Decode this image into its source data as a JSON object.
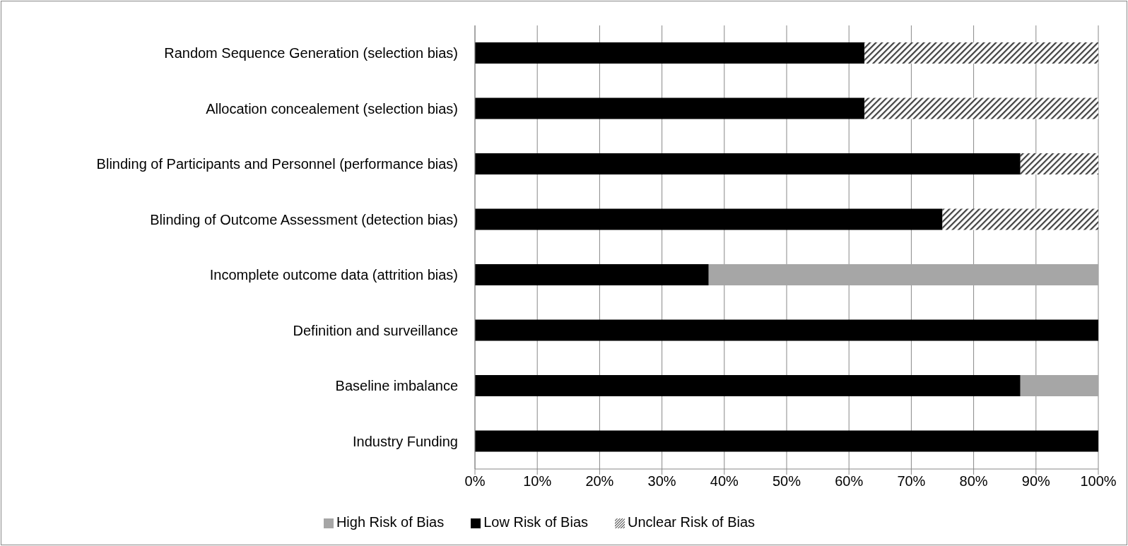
{
  "chart_data": {
    "type": "bar",
    "orientation": "horizontal",
    "stacked": true,
    "categories": [
      "Random Sequence Generation (selection bias)",
      "Allocation concealement (selection bias)",
      "Blinding of Participants and Personnel (performance bias)",
      "Blinding of Outcome Assessment (detection bias)",
      "Incomplete outcome data (attrition bias)",
      "Definition and surveillance",
      "Baseline imbalance",
      "Industry Funding"
    ],
    "series": [
      {
        "name": "Low Risk of Bias",
        "color": "#000000",
        "values": [
          62.5,
          62.5,
          87.5,
          75,
          37.5,
          100,
          87.5,
          100
        ]
      },
      {
        "name": "Unclear Risk of Bias",
        "color": "#404040",
        "values": [
          37.5,
          37.5,
          12.5,
          25,
          0,
          0,
          0,
          0
        ]
      },
      {
        "name": "High Risk of Bias",
        "color": "#a6a6a6",
        "values": [
          0,
          0,
          0,
          0,
          62.5,
          0,
          12.5,
          0
        ]
      }
    ],
    "xlim": [
      0,
      100
    ],
    "xticks": [
      {
        "value": 0,
        "label": "0%"
      },
      {
        "value": 10,
        "label": "10%"
      },
      {
        "value": 20,
        "label": "20%"
      },
      {
        "value": 30,
        "label": "30%"
      },
      {
        "value": 40,
        "label": "40%"
      },
      {
        "value": 50,
        "label": "50%"
      },
      {
        "value": 60,
        "label": "60%"
      },
      {
        "value": 70,
        "label": "70%"
      },
      {
        "value": 80,
        "label": "80%"
      },
      {
        "value": 90,
        "label": "90%"
      },
      {
        "value": 100,
        "label": "100%"
      }
    ],
    "grid": "x",
    "legend": "bottom"
  }
}
